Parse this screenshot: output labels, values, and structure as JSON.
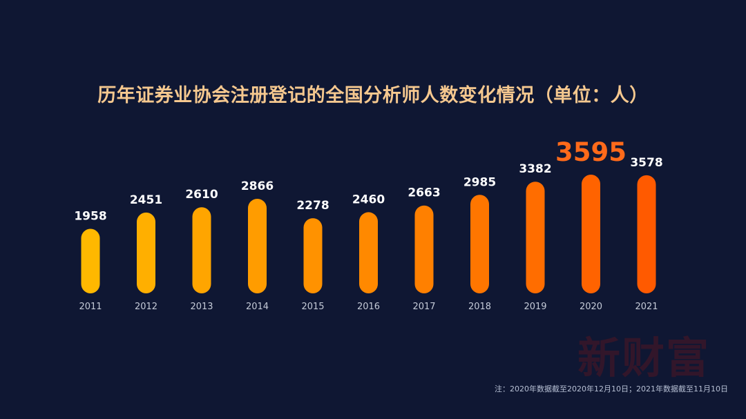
{
  "title": "历年证券业协会注册登记的全国分析师人数变化情况（单位：人）",
  "footnote": "注：2020年数据截至2020年12月10日；2021年数据截至11月10日",
  "watermark": "新财富",
  "colors": {
    "background": "#0f1733",
    "title": "#f5c88f",
    "label": "#ffffff",
    "highlight_label": "#ff6a1a",
    "tick_label": "#c5cbd8",
    "watermark": "#7a1418",
    "bar_gradient_start": "#ffb800",
    "bar_gradient_end": "#ff5a00"
  },
  "chart_data": {
    "type": "bar",
    "title": "历年证券业协会注册登记的全国分析师人数变化情况（单位：人）",
    "xlabel": "",
    "ylabel": "",
    "categories": [
      "2011",
      "2012",
      "2013",
      "2014",
      "2015",
      "2016",
      "2017",
      "2018",
      "2019",
      "2020",
      "2021"
    ],
    "values": [
      1958,
      2451,
      2610,
      2866,
      2278,
      2460,
      2663,
      2985,
      3382,
      3595,
      3578
    ],
    "highlight_category": "2020",
    "grid": false,
    "legend": "none"
  }
}
